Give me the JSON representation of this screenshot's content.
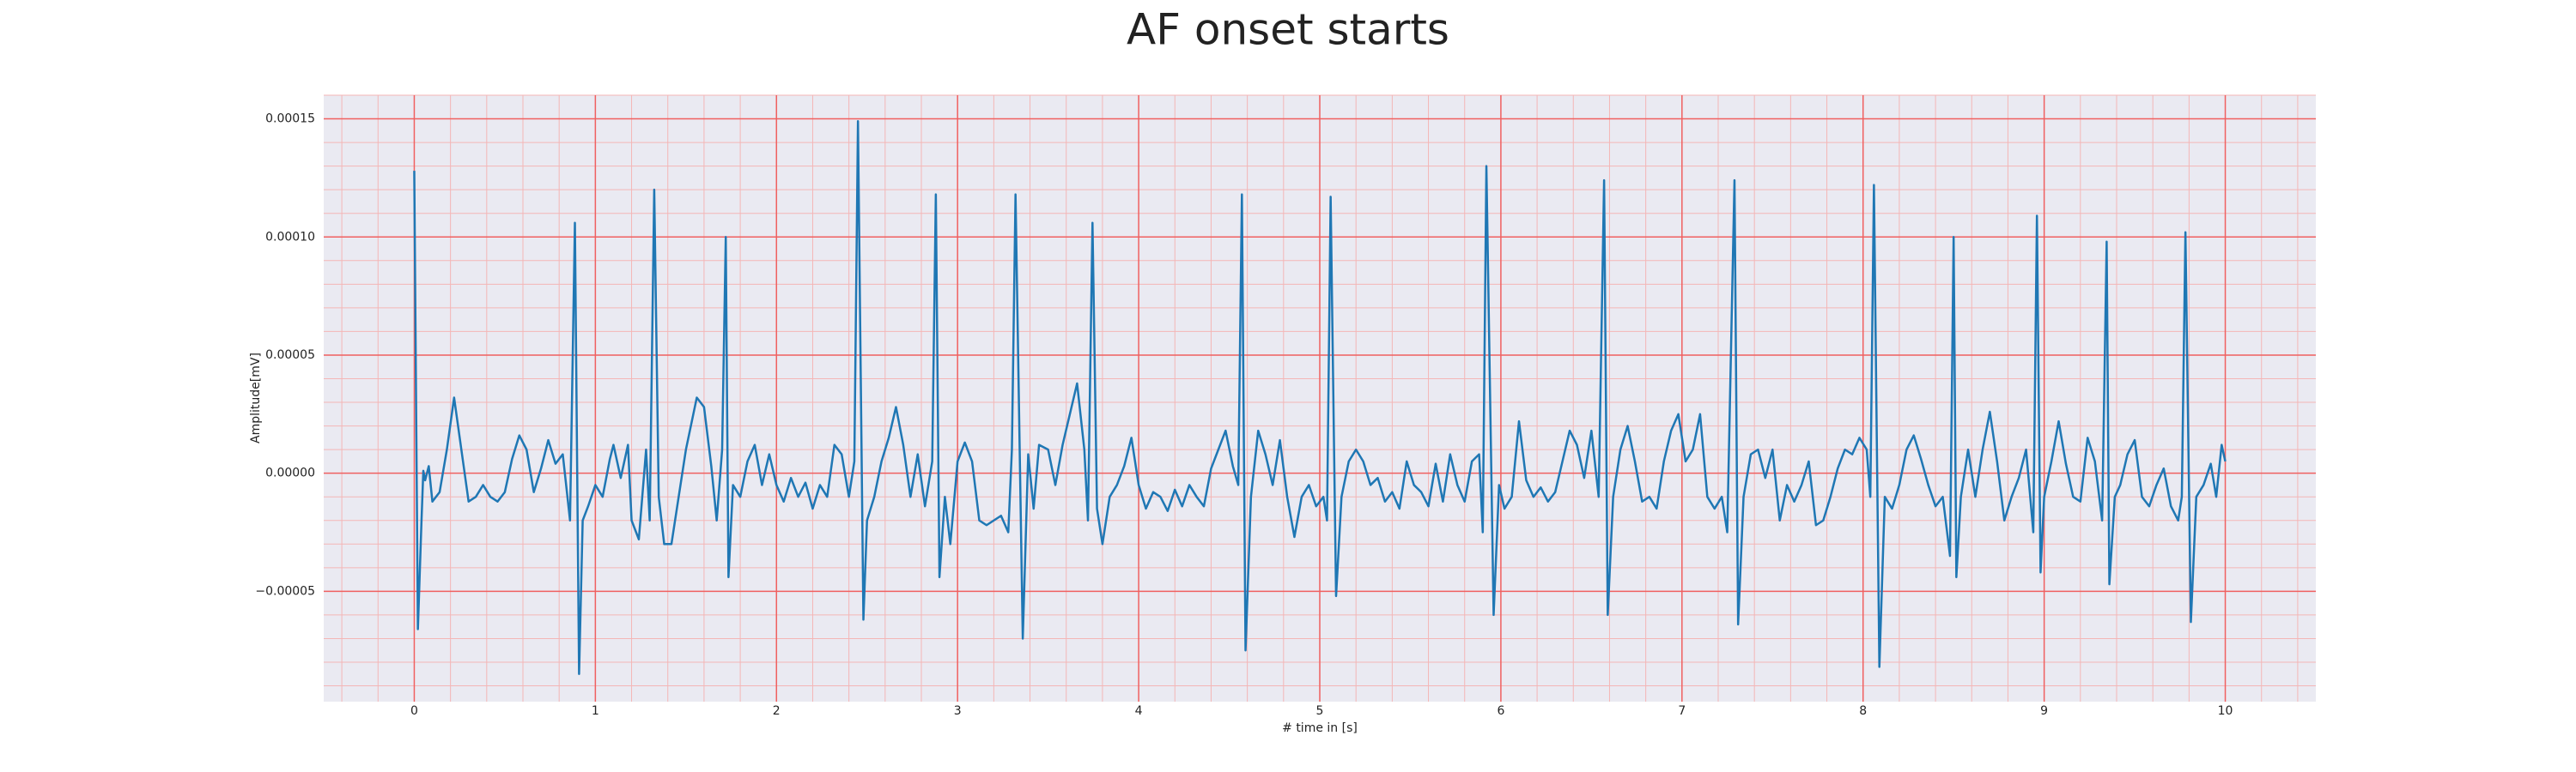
{
  "chart_data": {
    "type": "line",
    "title": "AF onset starts",
    "x_label": "# time in [s]",
    "y_label": "Amplitude[mV]",
    "color": "#1f77b4",
    "grid": true,
    "minor_grid": true,
    "xlim": [
      -0.5,
      10.5
    ],
    "xticks": [
      0,
      1,
      2,
      3,
      4,
      5,
      6,
      7,
      8,
      9,
      10
    ],
    "ylim": [
      -9.67e-05,
      0.00016
    ],
    "yticks": [
      {
        "value": -5e-05,
        "label": "−0.00005"
      },
      {
        "value": 0,
        "label": "0.00000"
      },
      {
        "value": 5e-05,
        "label": "0.00005"
      },
      {
        "value": 0.0001,
        "label": "0.00010"
      },
      {
        "value": 0.00015,
        "label": "0.00015"
      }
    ],
    "x": [
      0.0,
      0.02,
      0.04,
      0.05,
      0.06,
      0.08,
      0.1,
      0.14,
      0.18,
      0.22,
      0.26,
      0.3,
      0.34,
      0.38,
      0.42,
      0.46,
      0.5,
      0.54,
      0.58,
      0.62,
      0.66,
      0.7,
      0.74,
      0.78,
      0.82,
      0.86,
      0.887,
      0.91,
      0.93,
      0.96,
      1.0,
      1.04,
      1.08,
      1.1,
      1.14,
      1.18,
      1.2,
      1.24,
      1.28,
      1.3,
      1.325,
      1.35,
      1.38,
      1.42,
      1.46,
      1.5,
      1.56,
      1.6,
      1.64,
      1.67,
      1.7,
      1.72,
      1.735,
      1.76,
      1.8,
      1.84,
      1.88,
      1.92,
      1.96,
      2.0,
      2.04,
      2.08,
      2.12,
      2.16,
      2.2,
      2.24,
      2.28,
      2.32,
      2.36,
      2.4,
      2.43,
      2.45,
      2.48,
      2.5,
      2.54,
      2.58,
      2.62,
      2.66,
      2.7,
      2.74,
      2.78,
      2.82,
      2.86,
      2.88,
      2.9,
      2.93,
      2.96,
      3.0,
      3.04,
      3.08,
      3.12,
      3.16,
      3.2,
      3.24,
      3.28,
      3.3,
      3.32,
      3.36,
      3.39,
      3.42,
      3.45,
      3.5,
      3.54,
      3.58,
      3.62,
      3.66,
      3.7,
      3.72,
      3.745,
      3.77,
      3.8,
      3.84,
      3.88,
      3.92,
      3.96,
      4.0,
      4.04,
      4.08,
      4.12,
      4.16,
      4.2,
      4.24,
      4.28,
      4.32,
      4.36,
      4.4,
      4.44,
      4.48,
      4.52,
      4.55,
      4.57,
      4.59,
      4.62,
      4.66,
      4.7,
      4.74,
      4.78,
      4.82,
      4.86,
      4.9,
      4.94,
      4.98,
      5.02,
      5.04,
      5.06,
      5.09,
      5.12,
      5.16,
      5.2,
      5.24,
      5.28,
      5.32,
      5.36,
      5.4,
      5.44,
      5.48,
      5.52,
      5.56,
      5.6,
      5.64,
      5.68,
      5.72,
      5.76,
      5.8,
      5.84,
      5.88,
      5.9,
      5.92,
      5.96,
      5.99,
      6.02,
      6.06,
      6.1,
      6.14,
      6.18,
      6.22,
      6.26,
      6.3,
      6.34,
      6.38,
      6.42,
      6.46,
      6.5,
      6.54,
      6.57,
      6.59,
      6.62,
      6.66,
      6.7,
      6.74,
      6.78,
      6.82,
      6.86,
      6.9,
      6.94,
      6.98,
      7.02,
      7.06,
      7.1,
      7.14,
      7.18,
      7.22,
      7.25,
      7.29,
      7.31,
      7.34,
      7.38,
      7.42,
      7.46,
      7.5,
      7.54,
      7.58,
      7.62,
      7.66,
      7.7,
      7.74,
      7.78,
      7.82,
      7.86,
      7.9,
      7.94,
      7.98,
      8.02,
      8.04,
      8.06,
      8.09,
      8.12,
      8.16,
      8.2,
      8.24,
      8.28,
      8.32,
      8.36,
      8.4,
      8.44,
      8.48,
      8.5,
      8.515,
      8.54,
      8.58,
      8.62,
      8.66,
      8.7,
      8.74,
      8.78,
      8.82,
      8.86,
      8.9,
      8.94,
      8.96,
      8.98,
      9.0,
      9.04,
      9.08,
      9.12,
      9.16,
      9.2,
      9.24,
      9.28,
      9.32,
      9.345,
      9.36,
      9.39,
      9.42,
      9.46,
      9.5,
      9.54,
      9.58,
      9.62,
      9.66,
      9.7,
      9.74,
      9.76,
      9.78,
      9.81,
      9.84,
      9.88,
      9.92,
      9.95,
      9.98,
      10.0
    ],
    "values": [
      0.000128,
      -6.6e-05,
      -2e-05,
      1e-06,
      -3e-06,
      3e-06,
      -1.2e-05,
      -8e-06,
      1e-05,
      3.2e-05,
      1e-05,
      -1.2e-05,
      -1e-05,
      -5e-06,
      -1e-05,
      -1.2e-05,
      -8e-06,
      6e-06,
      1.6e-05,
      1e-05,
      -8e-06,
      2e-06,
      1.4e-05,
      4e-06,
      8e-06,
      -2e-05,
      0.000106,
      -8.5e-05,
      -2e-05,
      -1.4e-05,
      -5e-06,
      -1e-05,
      6e-06,
      1.2e-05,
      -2e-06,
      1.2e-05,
      -2e-05,
      -2.8e-05,
      1e-05,
      -2e-05,
      0.00012,
      -1e-05,
      -3e-05,
      -3e-05,
      -1e-05,
      1e-05,
      3.2e-05,
      2.8e-05,
      3e-06,
      -2e-05,
      1e-05,
      0.0001,
      -4.4e-05,
      -5e-06,
      -1e-05,
      5e-06,
      1.2e-05,
      -5e-06,
      8e-06,
      -5e-06,
      -1.2e-05,
      -2e-06,
      -1e-05,
      -4e-06,
      -1.5e-05,
      -5e-06,
      -1e-05,
      1.2e-05,
      8e-06,
      -1e-05,
      5e-06,
      0.000149,
      -6.2e-05,
      -2e-05,
      -1e-05,
      5e-06,
      1.5e-05,
      2.8e-05,
      1.2e-05,
      -1e-05,
      8e-06,
      -1.4e-05,
      5e-06,
      0.000118,
      -4.4e-05,
      -1e-05,
      -3e-05,
      5e-06,
      1.3e-05,
      5e-06,
      -2e-05,
      -2.2e-05,
      -2e-05,
      -1.8e-05,
      -2.5e-05,
      1e-05,
      0.000118,
      -7e-05,
      8e-06,
      -1.5e-05,
      1.2e-05,
      1e-05,
      -5e-06,
      1.2e-05,
      2.5e-05,
      3.8e-05,
      1e-05,
      -2e-05,
      0.000106,
      -1.5e-05,
      -3e-05,
      -1e-05,
      -5e-06,
      3e-06,
      1.5e-05,
      -5e-06,
      -1.5e-05,
      -8e-06,
      -1e-05,
      -1.6e-05,
      -7e-06,
      -1.4e-05,
      -5e-06,
      -1e-05,
      -1.4e-05,
      2e-06,
      1e-05,
      1.8e-05,
      3e-06,
      -5e-06,
      0.000118,
      -7.5e-05,
      -1e-05,
      1.8e-05,
      8e-06,
      -5e-06,
      1.4e-05,
      -1e-05,
      -2.7e-05,
      -1e-05,
      -5e-06,
      -1.4e-05,
      -1e-05,
      -2e-05,
      0.000117,
      -5.2e-05,
      -1e-05,
      5e-06,
      1e-05,
      5e-06,
      -5e-06,
      -2e-06,
      -1.2e-05,
      -8e-06,
      -1.5e-05,
      5e-06,
      -5e-06,
      -8e-06,
      -1.4e-05,
      4e-06,
      -1.2e-05,
      8e-06,
      -5e-06,
      -1.2e-05,
      5e-06,
      8e-06,
      -2.5e-05,
      0.00013,
      -6e-05,
      -5e-06,
      -1.5e-05,
      -1e-05,
      2.2e-05,
      -3e-06,
      -1e-05,
      -6e-06,
      -1.2e-05,
      -8e-06,
      5e-06,
      1.8e-05,
      1.2e-05,
      -2e-06,
      1.8e-05,
      -1e-05,
      0.000124,
      -6e-05,
      -1e-05,
      1e-05,
      2e-05,
      5e-06,
      -1.2e-05,
      -1e-05,
      -1.5e-05,
      5e-06,
      1.8e-05,
      2.5e-05,
      5e-06,
      1e-05,
      2.5e-05,
      -1e-05,
      -1.5e-05,
      -1e-05,
      -2.5e-05,
      0.000124,
      -6.4e-05,
      -1e-05,
      8e-06,
      1e-05,
      -2e-06,
      1e-05,
      -2e-05,
      -5e-06,
      -1.2e-05,
      -5e-06,
      5e-06,
      -2.2e-05,
      -2e-05,
      -1e-05,
      2e-06,
      1e-05,
      8e-06,
      1.5e-05,
      1e-05,
      -1e-05,
      0.000122,
      -8.2e-05,
      -1e-05,
      -1.5e-05,
      -5e-06,
      1e-05,
      1.6e-05,
      6e-06,
      -5e-06,
      -1.4e-05,
      -1e-05,
      -3.5e-05,
      0.0001,
      -4.4e-05,
      -1e-05,
      1e-05,
      -1e-05,
      1e-05,
      2.6e-05,
      5e-06,
      -2e-05,
      -1e-05,
      -2e-06,
      1e-05,
      -2.5e-05,
      0.000109,
      -4.2e-05,
      -1e-05,
      5e-06,
      2.2e-05,
      4e-06,
      -1e-05,
      -1.2e-05,
      1.5e-05,
      5e-06,
      -2e-05,
      9.8e-05,
      -4.7e-05,
      -1e-05,
      -5e-06,
      8e-06,
      1.4e-05,
      -1e-05,
      -1.4e-05,
      -5e-06,
      2e-06,
      -1.4e-05,
      -2e-05,
      -1e-05,
      0.000102,
      -6.3e-05,
      -1e-05,
      -5e-06,
      4e-06,
      -1e-05,
      1.2e-05,
      5e-06
    ]
  }
}
